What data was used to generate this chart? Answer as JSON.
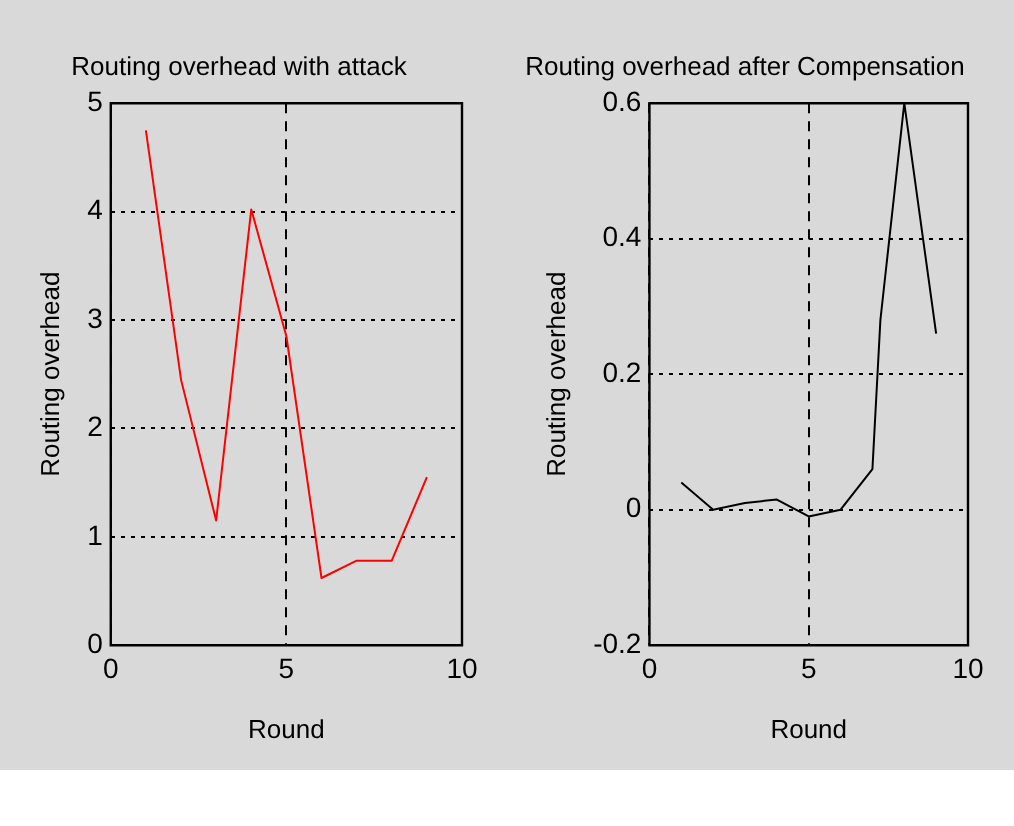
{
  "chart_data": [
    {
      "type": "line",
      "title": "Routing overhead with attack",
      "xlabel": "Round",
      "ylabel": "Routing overhead",
      "x": [
        1,
        2,
        3,
        4,
        5,
        6,
        7,
        8,
        9
      ],
      "series": [
        {
          "color": "#ff0000",
          "values": [
            4.75,
            2.45,
            1.15,
            4.02,
            2.85,
            0.62,
            0.78,
            0.78,
            1.55
          ]
        }
      ],
      "xlim": [
        0,
        10
      ],
      "xticks": [
        0,
        5,
        10
      ],
      "ylim": [
        0,
        5
      ],
      "yticks": [
        0,
        1,
        2,
        3,
        4,
        5
      ],
      "grid": true,
      "legend": false,
      "marker": "none",
      "line_style": "solid"
    },
    {
      "type": "line",
      "title": "Routing overhead after Compensation",
      "xlabel": "Round",
      "ylabel": "Routing overhead",
      "x": [
        1,
        2,
        3,
        4,
        5,
        6,
        7,
        7.25,
        8,
        9
      ],
      "series": [
        {
          "color": "#000000",
          "values": [
            0.04,
            0.0,
            0.01,
            0.015,
            -0.01,
            0.0,
            0.06,
            0.28,
            0.6,
            0.26
          ]
        }
      ],
      "xlim": [
        0,
        10
      ],
      "xticks": [
        0,
        5,
        10
      ],
      "ylim": [
        -0.2,
        0.6
      ],
      "yticks": [
        -0.2,
        0,
        0.2,
        0.4,
        0.6
      ],
      "grid": true,
      "legend": false,
      "marker": "none",
      "line_style": "solid"
    }
  ]
}
